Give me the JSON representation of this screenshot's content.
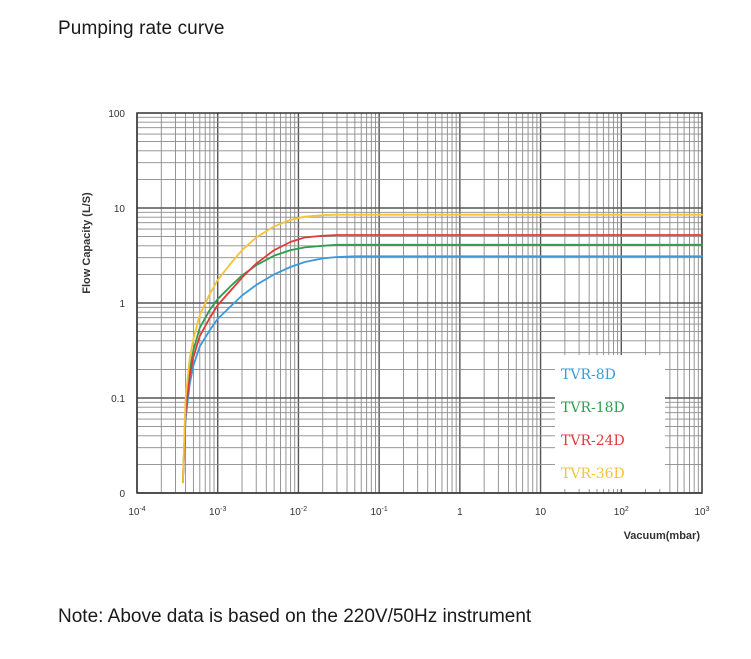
{
  "page": {
    "title": "Pumping rate curve",
    "note": "Note: Above data is based on the 220V/50Hz instrument"
  },
  "chart_data": {
    "type": "line",
    "title": "",
    "xlabel": "Vacuum(mbar)",
    "ylabel": "Flow Capacity (L/S)",
    "xscale": "log",
    "yscale": "log",
    "xlim": [
      0.0001,
      1000
    ],
    "ylim": [
      0.01,
      100
    ],
    "x_ticks": [
      {
        "value": 0.0001,
        "base": "10",
        "exp": "-4"
      },
      {
        "value": 0.001,
        "base": "10",
        "exp": "-3"
      },
      {
        "value": 0.01,
        "base": "10",
        "exp": "-2"
      },
      {
        "value": 0.1,
        "base": "10",
        "exp": "-1"
      },
      {
        "value": 1,
        "base": "1",
        "exp": ""
      },
      {
        "value": 10,
        "base": "10",
        "exp": ""
      },
      {
        "value": 100,
        "base": "10",
        "exp": "2"
      },
      {
        "value": 1000,
        "base": "10",
        "exp": "3"
      }
    ],
    "y_ticks": [
      {
        "value": 0.01,
        "label": "0"
      },
      {
        "value": 0.1,
        "label": "0.1"
      },
      {
        "value": 1,
        "label": "1"
      },
      {
        "value": 10,
        "label": "10"
      },
      {
        "value": 100,
        "label": "100"
      }
    ],
    "grid": true,
    "legend_position": "bottom-right",
    "series": [
      {
        "name": "TVR-8D",
        "color": "#3a9ad9",
        "x": [
          0.00037,
          0.0004,
          0.00045,
          0.0005,
          0.0006,
          0.0008,
          0.001,
          0.0015,
          0.002,
          0.003,
          0.005,
          0.008,
          0.012,
          0.02,
          0.03,
          0.05,
          0.08,
          0.1,
          1,
          10,
          100,
          1000
        ],
        "y": [
          0.013,
          0.06,
          0.14,
          0.22,
          0.35,
          0.52,
          0.68,
          0.95,
          1.2,
          1.55,
          2.0,
          2.4,
          2.7,
          2.95,
          3.05,
          3.1,
          3.1,
          3.1,
          3.1,
          3.1,
          3.1,
          3.1
        ]
      },
      {
        "name": "TVR-18D",
        "color": "#2e9e4e",
        "x": [
          0.00037,
          0.0004,
          0.00045,
          0.0005,
          0.0006,
          0.0008,
          0.001,
          0.0015,
          0.002,
          0.003,
          0.005,
          0.008,
          0.012,
          0.02,
          0.03,
          0.05,
          0.08,
          0.1,
          1,
          10,
          100,
          1000
        ],
        "y": [
          0.013,
          0.08,
          0.2,
          0.32,
          0.55,
          0.85,
          1.1,
          1.55,
          1.95,
          2.5,
          3.15,
          3.6,
          3.85,
          4.0,
          4.1,
          4.1,
          4.1,
          4.1,
          4.1,
          4.1,
          4.1,
          4.1
        ]
      },
      {
        "name": "TVR-24D",
        "color": "#e03a3a",
        "x": [
          0.00037,
          0.0004,
          0.00045,
          0.0005,
          0.0006,
          0.0008,
          0.001,
          0.0015,
          0.002,
          0.003,
          0.005,
          0.008,
          0.012,
          0.02,
          0.03,
          0.05,
          0.08,
          0.1,
          1,
          10,
          100,
          1000
        ],
        "y": [
          0.013,
          0.07,
          0.17,
          0.27,
          0.45,
          0.7,
          0.95,
          1.4,
          1.85,
          2.6,
          3.6,
          4.4,
          4.9,
          5.1,
          5.2,
          5.2,
          5.2,
          5.2,
          5.2,
          5.2,
          5.2,
          5.2
        ]
      },
      {
        "name": "TVR-36D",
        "color": "#f5c23a",
        "x": [
          0.00037,
          0.0004,
          0.00045,
          0.0005,
          0.0006,
          0.0008,
          0.001,
          0.0015,
          0.002,
          0.003,
          0.005,
          0.008,
          0.012,
          0.02,
          0.03,
          0.05,
          0.08,
          0.1,
          1,
          10,
          100,
          1000
        ],
        "y": [
          0.013,
          0.1,
          0.26,
          0.42,
          0.75,
          1.25,
          1.75,
          2.7,
          3.6,
          4.9,
          6.4,
          7.5,
          8.1,
          8.4,
          8.5,
          8.5,
          8.5,
          8.5,
          8.5,
          8.5,
          8.5,
          8.5
        ]
      }
    ]
  }
}
